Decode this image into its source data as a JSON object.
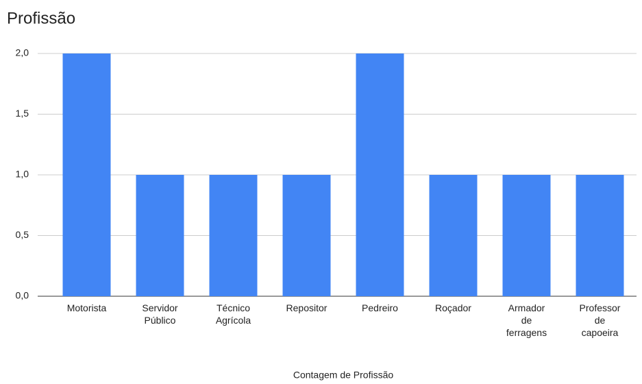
{
  "chart_data": {
    "type": "bar",
    "title": "Profissão",
    "x_label": "Contagem de Profissão",
    "categories": [
      "Motorista",
      "Servidor Público",
      "Técnico Agrícola",
      "Repositor",
      "Pedreiro",
      "Roçador",
      "Armador de ferragens",
      "Professor de capoeira"
    ],
    "values": [
      2,
      1,
      1,
      1,
      2,
      1,
      1,
      1
    ],
    "color": "#4285f4",
    "ylim": [
      0,
      2
    ],
    "yticks": [
      {
        "value": 0,
        "label": "0,0"
      },
      {
        "value": 0.5,
        "label": "0,5"
      },
      {
        "value": 1,
        "label": "1,0"
      },
      {
        "value": 1.5,
        "label": "1,5"
      },
      {
        "value": 2,
        "label": "2,0"
      }
    ],
    "grid": true
  }
}
